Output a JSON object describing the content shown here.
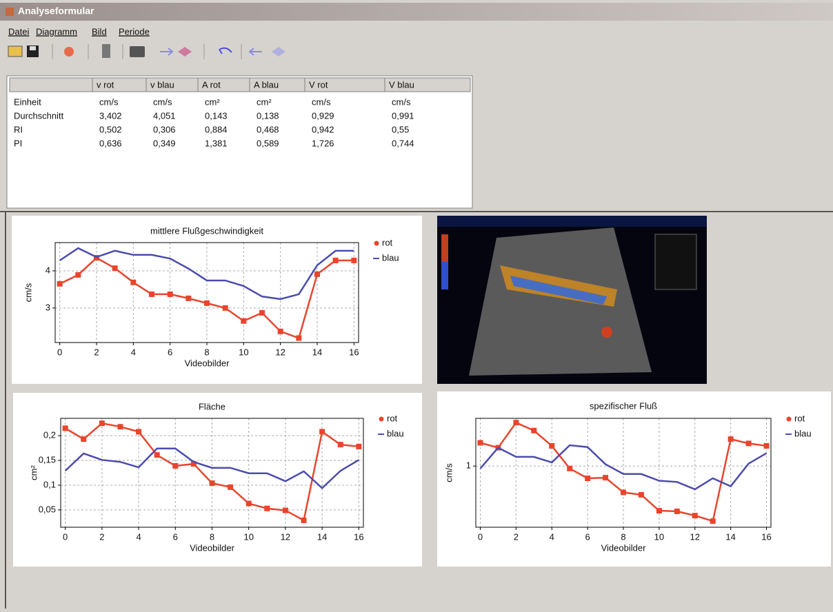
{
  "window": {
    "title": "Analyseformular"
  },
  "menu": [
    "Datei",
    "Diagramm",
    "Bild",
    "Periode"
  ],
  "table": {
    "header": [
      "v rot",
      "v blau",
      "A rot",
      "A blau",
      "V rot",
      "V blau"
    ],
    "rows": [
      [
        "Einheit",
        "cm/s",
        "cm/s",
        "cm²",
        "cm²",
        "cm/s",
        "cm/s"
      ],
      [
        "Durchschnitt",
        "3,402",
        "4,051",
        "0,143",
        "0,138",
        "0,929",
        "0,991"
      ],
      [
        "RI",
        "0,502",
        "0,306",
        "0,884",
        "0,468",
        "0,942",
        "0,55"
      ],
      [
        "PI",
        "0,636",
        "0,349",
        "1,381",
        "0,589",
        "1,726",
        "0,744"
      ]
    ]
  },
  "chart_data": [
    {
      "type": "line",
      "title": "mittlere Flußgeschwindigkeit",
      "xlabel": "Videobilder",
      "ylabel": "cm/s",
      "x": [
        0,
        1,
        2,
        3,
        4,
        5,
        6,
        7,
        8,
        9,
        10,
        11,
        12,
        13,
        14,
        15,
        16
      ],
      "series": [
        {
          "name": "rot",
          "color": "#e8452c",
          "marker": true,
          "values": [
            3.65,
            3.89,
            4.35,
            4.07,
            3.69,
            3.37,
            3.37,
            3.26,
            3.13,
            3.0,
            2.65,
            2.87,
            2.37,
            2.19,
            3.91,
            4.28,
            4.28
          ]
        },
        {
          "name": "blau",
          "color": "#4b4bb0",
          "marker": false,
          "values": [
            4.28,
            4.61,
            4.37,
            4.54,
            4.43,
            4.43,
            4.33,
            4.06,
            3.74,
            3.74,
            3.59,
            3.31,
            3.24,
            3.37,
            4.15,
            4.54,
            4.54
          ]
        }
      ],
      "xlim": [
        -0.25,
        16.25
      ],
      "xticks": [
        0,
        2,
        4,
        6,
        8,
        10,
        12,
        14,
        16
      ],
      "ylim": [
        2.07,
        4.76
      ],
      "yticks": [
        3,
        4
      ],
      "grid": true,
      "legend": "right"
    },
    {
      "type": "line",
      "title": "Fläche",
      "xlabel": "Videobilder",
      "ylabel": "cm²",
      "x": [
        0,
        1,
        2,
        3,
        4,
        5,
        6,
        7,
        8,
        9,
        10,
        11,
        12,
        13,
        14,
        15,
        16
      ],
      "series": [
        {
          "name": "rot",
          "color": "#e8452c",
          "marker": true,
          "values": [
            0.215,
            0.193,
            0.225,
            0.218,
            0.208,
            0.161,
            0.139,
            0.143,
            0.104,
            0.096,
            0.063,
            0.053,
            0.049,
            0.029,
            0.208,
            0.182,
            0.178
          ]
        },
        {
          "name": "blau",
          "color": "#4b4bb0",
          "marker": false,
          "values": [
            0.129,
            0.164,
            0.151,
            0.147,
            0.136,
            0.174,
            0.174,
            0.147,
            0.135,
            0.135,
            0.124,
            0.124,
            0.108,
            0.128,
            0.094,
            0.129,
            0.151
          ]
        }
      ],
      "xlim": [
        -0.25,
        16.25
      ],
      "xticks": [
        0,
        2,
        4,
        6,
        8,
        10,
        12,
        14,
        16
      ],
      "ylim": [
        0.015,
        0.235
      ],
      "yticks": [
        {
          "value": 0.05,
          "label": "0,05"
        },
        {
          "value": 0.1,
          "label": "0,1"
        },
        {
          "value": 0.15,
          "label": "0,15"
        },
        {
          "value": 0.2,
          "label": "0,2"
        }
      ],
      "grid": true,
      "legend": "right"
    },
    {
      "type": "line",
      "title": "spezifischer Fluß",
      "xlabel": "Videobilder",
      "ylabel": "cm/s",
      "x": [
        0,
        1,
        2,
        3,
        4,
        5,
        6,
        7,
        8,
        9,
        10,
        11,
        12,
        13,
        14,
        15,
        16
      ],
      "series": [
        {
          "name": "rot",
          "color": "#e8452c",
          "marker": true,
          "values": [
            1.38,
            1.3,
            1.71,
            1.58,
            1.33,
            0.96,
            0.8,
            0.81,
            0.57,
            0.53,
            0.27,
            0.26,
            0.19,
            0.1,
            1.44,
            1.37,
            1.33
          ]
        },
        {
          "name": "blau",
          "color": "#4b4bb0",
          "marker": false,
          "values": [
            0.96,
            1.3,
            1.15,
            1.15,
            1.06,
            1.34,
            1.31,
            1.03,
            0.87,
            0.87,
            0.76,
            0.74,
            0.62,
            0.8,
            0.67,
            1.04,
            1.21
          ]
        }
      ],
      "xlim": [
        -0.25,
        16.25
      ],
      "xticks": [
        0,
        2,
        4,
        6,
        8,
        10,
        12,
        14,
        16
      ],
      "ylim": [
        0,
        1.78
      ],
      "yticks": [
        1
      ],
      "grid": true,
      "legend": "right"
    }
  ]
}
